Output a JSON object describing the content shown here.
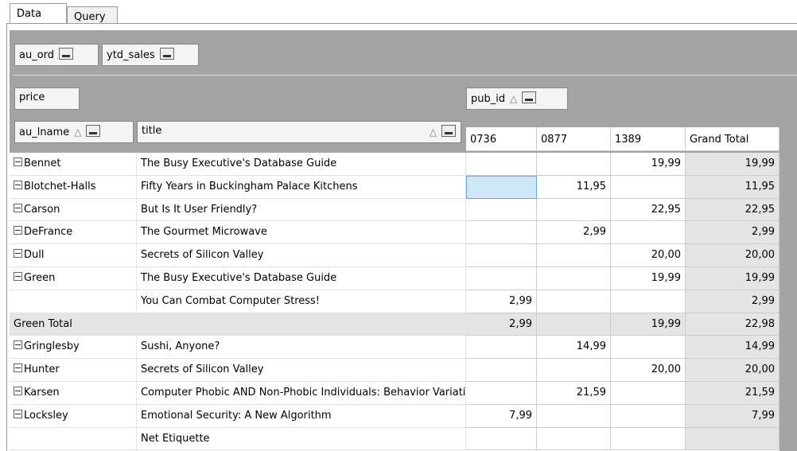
{
  "tabs": [
    "Data",
    "Query"
  ],
  "filter_fields": [
    "au_ord",
    "ytd_sales"
  ],
  "data_field": "price",
  "column_field": "pub_id",
  "row_fields": [
    "au_lname",
    "title"
  ],
  "columns": [
    "0736",
    "0877",
    "1389",
    "Grand Total"
  ],
  "rows": [
    {
      "au_lname": "Bennet",
      "title": "The Busy Executive's Database Guide",
      "cells": [
        null,
        null,
        "19,99"
      ],
      "grand_total": "19,99"
    },
    {
      "au_lname": "Blotchet-Halls",
      "title": "Fifty Years in Buckingham Palace Kitchens",
      "cells": [
        null,
        "11,95",
        null
      ],
      "grand_total": "11,95"
    },
    {
      "au_lname": "Carson",
      "title": "But Is It User Friendly?",
      "cells": [
        null,
        null,
        "22,95"
      ],
      "grand_total": "22,95"
    },
    {
      "au_lname": "DeFrance",
      "title": "The Gourmet Microwave",
      "cells": [
        null,
        "2,99",
        null
      ],
      "grand_total": "2,99"
    },
    {
      "au_lname": "Dull",
      "title": "Secrets of Silicon Valley",
      "cells": [
        null,
        null,
        "20,00"
      ],
      "grand_total": "20,00"
    },
    {
      "au_lname": "Green",
      "title": "The Busy Executive's Database Guide",
      "cells": [
        null,
        null,
        "19,99"
      ],
      "grand_total": "19,99"
    },
    {
      "au_lname": null,
      "title": "You Can Combat Computer Stress!",
      "cells": [
        "2,99",
        null,
        null
      ],
      "grand_total": "2,99"
    },
    {
      "label": "Green Total",
      "cells": [
        "2,99",
        null,
        "19,99"
      ],
      "grand_total": "22,98"
    },
    {
      "au_lname": "Gringlesby",
      "title": "Sushi, Anyone?",
      "cells": [
        null,
        "14,99",
        null
      ],
      "grand_total": "14,99"
    },
    {
      "au_lname": "Hunter",
      "title": "Secrets of Silicon Valley",
      "cells": [
        null,
        null,
        "20,00"
      ],
      "grand_total": "20,00"
    },
    {
      "au_lname": "Karsen",
      "title": "Computer Phobic AND Non-Phobic Individuals: Behavior Variations",
      "cells": [
        null,
        "21,59",
        null
      ],
      "grand_total": "21,59"
    },
    {
      "au_lname": "Locksley",
      "title": "Emotional Security: A New Algorithm",
      "cells": [
        "7,99",
        null,
        null
      ],
      "grand_total": "7,99"
    },
    {
      "au_lname": null,
      "title": "Net Etiquette",
      "cells": [
        null,
        null,
        null
      ],
      "grand_total": null
    }
  ]
}
